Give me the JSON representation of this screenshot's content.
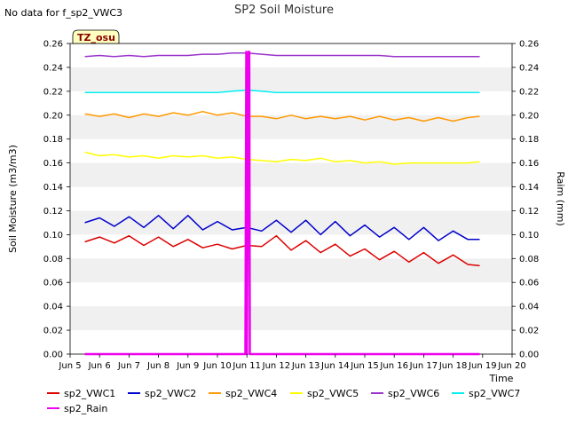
{
  "note": "No data for f_sp2_VWC3",
  "badge": "TZ_osu",
  "chart_data": {
    "type": "line",
    "title": "SP2 Soil Moisture",
    "xlabel": "Time",
    "ylabel": "Soil Moisture (m3/m3)",
    "y2label": "Raim (mm)",
    "xlim": [
      5.0,
      20.0
    ],
    "ylim": [
      0.0,
      0.26
    ],
    "y2lim": [
      0.0,
      0.26
    ],
    "x_ticks": [
      5,
      6,
      7,
      8,
      9,
      10,
      11,
      12,
      13,
      14,
      15,
      16,
      17,
      18,
      19,
      20
    ],
    "x_tick_labels": [
      "Jun 5",
      "Jun 6",
      "Jun 7",
      "Jun 8",
      "Jun 9",
      "Jun 10",
      "Jun 11",
      "Jun 12",
      "Jun 13",
      "Jun 14",
      "Jun 15",
      "Jun 16",
      "Jun 17",
      "Jun 18",
      "Jun 19",
      "Jun 20"
    ],
    "y_ticks": [
      0.0,
      0.02,
      0.04,
      0.06,
      0.08,
      0.1,
      0.12,
      0.14,
      0.16,
      0.18,
      0.2,
      0.22,
      0.24,
      0.26
    ],
    "y_tick_labels": [
      "0.00",
      "0.02",
      "0.04",
      "0.06",
      "0.08",
      "0.10",
      "0.12",
      "0.14",
      "0.16",
      "0.18",
      "0.20",
      "0.22",
      "0.24",
      "0.26"
    ],
    "grid_bands": true,
    "legend_placement": "bottom",
    "series": [
      {
        "name": "sp2_VWC1",
        "color": "#dd0000",
        "x": [
          5.5,
          6.0,
          6.5,
          7.0,
          7.5,
          8.0,
          8.5,
          9.0,
          9.5,
          10.0,
          10.5,
          11.0,
          11.5,
          12.0,
          12.5,
          13.0,
          13.5,
          14.0,
          14.5,
          15.0,
          15.5,
          16.0,
          16.5,
          17.0,
          17.5,
          18.0,
          18.5,
          18.9
        ],
        "y": [
          0.094,
          0.098,
          0.093,
          0.099,
          0.091,
          0.098,
          0.09,
          0.096,
          0.089,
          0.092,
          0.088,
          0.091,
          0.09,
          0.099,
          0.087,
          0.095,
          0.085,
          0.092,
          0.082,
          0.088,
          0.079,
          0.086,
          0.077,
          0.085,
          0.076,
          0.083,
          0.075,
          0.074
        ]
      },
      {
        "name": "sp2_VWC2",
        "color": "#0000cc",
        "x": [
          5.5,
          6.0,
          6.5,
          7.0,
          7.5,
          8.0,
          8.5,
          9.0,
          9.5,
          10.0,
          10.5,
          11.0,
          11.5,
          12.0,
          12.5,
          13.0,
          13.5,
          14.0,
          14.5,
          15.0,
          15.5,
          16.0,
          16.5,
          17.0,
          17.5,
          18.0,
          18.5,
          18.9
        ],
        "y": [
          0.11,
          0.114,
          0.107,
          0.115,
          0.106,
          0.116,
          0.105,
          0.116,
          0.104,
          0.111,
          0.104,
          0.106,
          0.103,
          0.112,
          0.102,
          0.112,
          0.1,
          0.111,
          0.099,
          0.108,
          0.098,
          0.106,
          0.096,
          0.106,
          0.095,
          0.103,
          0.096,
          0.096
        ]
      },
      {
        "name": "sp2_VWC4",
        "color": "#ff9900",
        "x": [
          5.5,
          6.0,
          6.5,
          7.0,
          7.5,
          8.0,
          8.5,
          9.0,
          9.5,
          10.0,
          10.5,
          11.0,
          11.5,
          12.0,
          12.5,
          13.0,
          13.5,
          14.0,
          14.5,
          15.0,
          15.5,
          16.0,
          16.5,
          17.0,
          17.5,
          18.0,
          18.5,
          18.9
        ],
        "y": [
          0.201,
          0.199,
          0.201,
          0.198,
          0.201,
          0.199,
          0.202,
          0.2,
          0.203,
          0.2,
          0.202,
          0.199,
          0.199,
          0.197,
          0.2,
          0.197,
          0.199,
          0.197,
          0.199,
          0.196,
          0.199,
          0.196,
          0.198,
          0.195,
          0.198,
          0.195,
          0.198,
          0.199
        ]
      },
      {
        "name": "sp2_VWC5",
        "color": "#ffff00",
        "x": [
          5.5,
          6.0,
          6.5,
          7.0,
          7.5,
          8.0,
          8.5,
          9.0,
          9.5,
          10.0,
          10.5,
          11.0,
          11.5,
          12.0,
          12.5,
          13.0,
          13.5,
          14.0,
          14.5,
          15.0,
          15.5,
          16.0,
          16.5,
          17.0,
          17.5,
          18.0,
          18.5,
          18.9
        ],
        "y": [
          0.169,
          0.166,
          0.167,
          0.165,
          0.166,
          0.164,
          0.166,
          0.165,
          0.166,
          0.164,
          0.165,
          0.163,
          0.162,
          0.161,
          0.163,
          0.162,
          0.164,
          0.161,
          0.162,
          0.16,
          0.161,
          0.159,
          0.16,
          0.16,
          0.16,
          0.16,
          0.16,
          0.161
        ]
      },
      {
        "name": "sp2_VWC6",
        "color": "#9933cc",
        "x": [
          5.5,
          6.0,
          6.5,
          7.0,
          7.5,
          8.0,
          8.5,
          9.0,
          9.5,
          10.0,
          10.5,
          11.0,
          11.5,
          12.0,
          12.5,
          13.0,
          13.5,
          14.0,
          14.5,
          15.0,
          15.5,
          16.0,
          16.5,
          17.0,
          17.5,
          18.0,
          18.5,
          18.9
        ],
        "y": [
          0.249,
          0.25,
          0.249,
          0.25,
          0.249,
          0.25,
          0.25,
          0.25,
          0.251,
          0.251,
          0.252,
          0.252,
          0.251,
          0.25,
          0.25,
          0.25,
          0.25,
          0.25,
          0.25,
          0.25,
          0.25,
          0.249,
          0.249,
          0.249,
          0.249,
          0.249,
          0.249,
          0.249
        ]
      },
      {
        "name": "sp2_VWC7",
        "color": "#00eeee",
        "x": [
          5.5,
          6.0,
          6.5,
          7.0,
          7.5,
          8.0,
          8.5,
          9.0,
          9.5,
          10.0,
          10.5,
          11.0,
          11.5,
          12.0,
          12.5,
          13.0,
          13.5,
          14.0,
          14.5,
          15.0,
          15.5,
          16.0,
          16.5,
          17.0,
          17.5,
          18.0,
          18.5,
          18.9
        ],
        "y": [
          0.219,
          0.219,
          0.219,
          0.219,
          0.219,
          0.219,
          0.219,
          0.219,
          0.219,
          0.219,
          0.22,
          0.221,
          0.22,
          0.219,
          0.219,
          0.219,
          0.219,
          0.219,
          0.219,
          0.219,
          0.219,
          0.219,
          0.219,
          0.219,
          0.219,
          0.219,
          0.219,
          0.219
        ]
      },
      {
        "name": "sp2_Rain",
        "color": "#ee00ee",
        "axis": "right",
        "x": [
          5.5,
          10.95,
          10.98,
          11.0,
          11.05,
          11.08,
          11.1,
          18.9
        ],
        "y": [
          0.0,
          0.0,
          0.253,
          0.0,
          0.253,
          0.253,
          0.0,
          0.0
        ]
      }
    ]
  }
}
